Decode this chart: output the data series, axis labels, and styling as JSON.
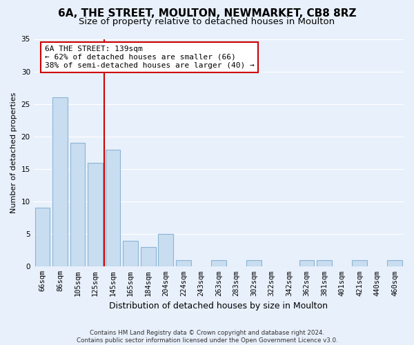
{
  "title": "6A, THE STREET, MOULTON, NEWMARKET, CB8 8RZ",
  "subtitle": "Size of property relative to detached houses in Moulton",
  "xlabel": "Distribution of detached houses by size in Moulton",
  "ylabel": "Number of detached properties",
  "bar_labels": [
    "66sqm",
    "86sqm",
    "105sqm",
    "125sqm",
    "145sqm",
    "165sqm",
    "184sqm",
    "204sqm",
    "224sqm",
    "243sqm",
    "263sqm",
    "283sqm",
    "302sqm",
    "322sqm",
    "342sqm",
    "362sqm",
    "381sqm",
    "401sqm",
    "421sqm",
    "440sqm",
    "460sqm"
  ],
  "bar_values": [
    9,
    26,
    19,
    16,
    18,
    4,
    3,
    5,
    1,
    0,
    1,
    0,
    1,
    0,
    0,
    1,
    1,
    0,
    1,
    0,
    1
  ],
  "bar_color": "#c9ddf0",
  "bar_edge_color": "#8ab4d4",
  "vline_index": 4,
  "vline_color": "#cc0000",
  "annotation_line1": "6A THE STREET: 139sqm",
  "annotation_line2": "← 62% of detached houses are smaller (66)",
  "annotation_line3": "38% of semi-detached houses are larger (40) →",
  "annotation_box_color": "#ffffff",
  "annotation_box_edge": "#cc0000",
  "ylim": [
    0,
    35
  ],
  "yticks": [
    0,
    5,
    10,
    15,
    20,
    25,
    30,
    35
  ],
  "footer_line1": "Contains HM Land Registry data © Crown copyright and database right 2024.",
  "footer_line2": "Contains public sector information licensed under the Open Government Licence v3.0.",
  "bg_color": "#e8f0fb",
  "title_fontsize": 11,
  "subtitle_fontsize": 9.5,
  "tick_fontsize": 7.5,
  "ylabel_fontsize": 8,
  "xlabel_fontsize": 9
}
